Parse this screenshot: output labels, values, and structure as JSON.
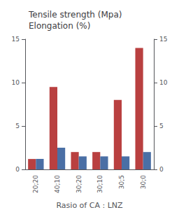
{
  "chart_data": {
    "type": "bar",
    "title": "Tensile strength (Mpa)\nElongation (%)",
    "xlabel": "Rasio of CA : LNZ",
    "categories": [
      "20;20",
      "40;10",
      "30;20",
      "30;10",
      "30;5",
      "30;0"
    ],
    "series": [
      {
        "color": "#b94040",
        "values": [
          1.2,
          9.5,
          2.0,
          2.0,
          8.0,
          14.0
        ]
      },
      {
        "color": "#4a6fa5",
        "values": [
          1.2,
          2.5,
          1.5,
          1.5,
          1.5,
          2.0
        ]
      }
    ],
    "ylim": [
      0,
      15
    ],
    "yticks": [
      0,
      5,
      10,
      15
    ],
    "y2lim": [
      0,
      15
    ],
    "y2ticks": [
      0,
      5,
      10,
      15
    ],
    "grid": false
  }
}
